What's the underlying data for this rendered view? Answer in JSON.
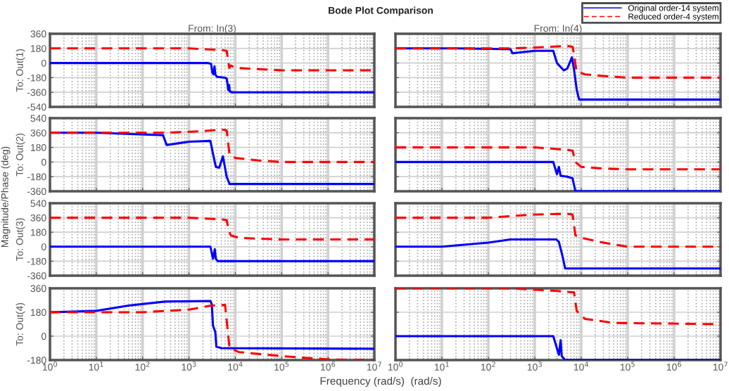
{
  "chart_data": [
    {
      "type": "line",
      "title": "From: In(3)",
      "ylabel": "To: Out(1)",
      "annotations": [
        "Bode Plot Comparison",
        "Magnitude/Phase (deg)",
        "Frequency (rad/s)  (rad/s)"
      ],
      "log": "x",
      "grid": true,
      "tick_labels": "y",
      "xlim": [
        1,
        10000000
      ],
      "xticks": [
        {
          "value": 1,
          "label": null
        },
        {
          "value": 10,
          "label": null
        },
        {
          "value": 100,
          "label": null
        },
        {
          "value": 1000,
          "label": null
        },
        {
          "value": 10000,
          "label": null
        },
        {
          "value": 100000,
          "label": null
        },
        {
          "value": 1000000,
          "label": null
        },
        {
          "value": 10000000,
          "label": null
        }
      ],
      "ylim": [
        -540,
        360
      ],
      "yticks": [
        -540,
        -360,
        -180,
        0,
        180,
        360
      ],
      "series": [
        {
          "color": "#0000ff",
          "line_style": "solid",
          "x": [
            1,
            2500,
            3000,
            3200,
            3400,
            3550,
            3700,
            4000,
            6000,
            6500,
            6800,
            7000,
            7300,
            7600,
            8500,
            10000000
          ],
          "values": [
            0,
            0,
            -10,
            -120,
            -140,
            -40,
            -140,
            -170,
            -180,
            -190,
            -260,
            -330,
            -270,
            -350,
            -360,
            -360
          ]
        },
        {
          "color": "#ff0000",
          "line_style": "dashed",
          "x": [
            1,
            1000,
            5000,
            6500,
            7400,
            8000,
            10000,
            100000,
            10000000
          ],
          "values": [
            180,
            180,
            160,
            150,
            -60,
            -30,
            -60,
            -90,
            -90
          ]
        }
      ]
    },
    {
      "type": "line",
      "title": "From: In(4)",
      "legend": "top right",
      "log": "x",
      "grid": true,
      "tick_labels": false,
      "xlim": [
        1,
        10000000
      ],
      "xticks": [
        {
          "value": 1,
          "label": null
        },
        {
          "value": 10,
          "label": null
        },
        {
          "value": 100,
          "label": null
        },
        {
          "value": 1000,
          "label": null
        },
        {
          "value": 10000,
          "label": null
        },
        {
          "value": 100000,
          "label": null
        },
        {
          "value": 1000000,
          "label": null
        },
        {
          "value": 10000000,
          "label": null
        }
      ],
      "ylim": [
        -540,
        360
      ],
      "yticks": [
        -540,
        -360,
        -180,
        0,
        180,
        360
      ],
      "series": [
        {
          "name": "Original order-14 system",
          "color": "#0000ff",
          "line_style": "solid",
          "x": [
            1,
            20,
            300,
            330,
            1000,
            2500,
            3000,
            4200,
            5000,
            6300,
            7000,
            8000,
            9000,
            10000000
          ],
          "values": [
            180,
            180,
            170,
            120,
            150,
            150,
            0,
            -90,
            -70,
            70,
            -80,
            -330,
            -450,
            -450
          ]
        },
        {
          "name": "Reduced order-4 system",
          "color": "#ff0000",
          "line_style": "dashed",
          "x": [
            1,
            300,
            1000,
            5000,
            6500,
            7000,
            7900,
            12000,
            30000,
            100000,
            10000000
          ],
          "values": [
            180,
            180,
            190,
            210,
            200,
            100,
            -100,
            -140,
            -160,
            -180,
            -180
          ]
        }
      ]
    },
    {
      "type": "line",
      "ylabel": "To: Out(2)",
      "log": "x",
      "grid": true,
      "tick_labels": "y",
      "xlim": [
        1,
        10000000
      ],
      "xticks": [
        {
          "value": 1,
          "label": null
        },
        {
          "value": 10,
          "label": null
        },
        {
          "value": 100,
          "label": null
        },
        {
          "value": 1000,
          "label": null
        },
        {
          "value": 10000,
          "label": null
        },
        {
          "value": 100000,
          "label": null
        },
        {
          "value": 1000000,
          "label": null
        },
        {
          "value": 10000000,
          "label": null
        }
      ],
      "ylim": [
        -360,
        540
      ],
      "yticks": [
        -360,
        -180,
        0,
        180,
        360,
        540
      ],
      "series": [
        {
          "color": "#0000ff",
          "line_style": "solid",
          "x": [
            1,
            10,
            275,
            330,
            1000,
            2900,
            3300,
            3800,
            4500,
            5400,
            6500,
            7500,
            10000000
          ],
          "values": [
            360,
            360,
            330,
            210,
            250,
            260,
            100,
            -60,
            -70,
            70,
            -180,
            -270,
            -270
          ]
        },
        {
          "color": "#ff0000",
          "line_style": "dashed",
          "x": [
            1,
            300,
            2000,
            5000,
            6500,
            7500,
            10000,
            30000,
            100000,
            10000000
          ],
          "values": [
            360,
            360,
            380,
            400,
            390,
            90,
            50,
            20,
            0,
            0
          ]
        }
      ]
    },
    {
      "type": "line",
      "log": "x",
      "grid": true,
      "tick_labels": false,
      "xlim": [
        1,
        10000000
      ],
      "xticks": [
        {
          "value": 1,
          "label": null
        },
        {
          "value": 10,
          "label": null
        },
        {
          "value": 100,
          "label": null
        },
        {
          "value": 1000,
          "label": null
        },
        {
          "value": 10000,
          "label": null
        },
        {
          "value": 100000,
          "label": null
        },
        {
          "value": 1000000,
          "label": null
        },
        {
          "value": 10000000,
          "label": null
        }
      ],
      "ylim": [
        -360,
        540
      ],
      "yticks": [
        -360,
        -180,
        0,
        180,
        360,
        540
      ],
      "series": [
        {
          "color": "#0000ff",
          "line_style": "solid",
          "x": [
            1,
            2500,
            3000,
            3300,
            3600,
            5000,
            6500,
            7500,
            10000000
          ],
          "values": [
            0,
            0,
            -150,
            -60,
            -170,
            -180,
            -200,
            -360,
            -360
          ]
        },
        {
          "color": "#ff0000",
          "line_style": "dashed",
          "x": [
            1,
            1000,
            3000,
            5000,
            6500,
            7500,
            10000,
            30000,
            100000,
            10000000
          ],
          "values": [
            180,
            180,
            160,
            150,
            140,
            0,
            -60,
            -80,
            -90,
            -90
          ]
        }
      ]
    },
    {
      "type": "line",
      "ylabel": "To: Out(3)",
      "log": "x",
      "grid": true,
      "tick_labels": "y",
      "xlim": [
        1,
        10000000
      ],
      "xticks": [
        {
          "value": 1,
          "label": null
        },
        {
          "value": 10,
          "label": null
        },
        {
          "value": 100,
          "label": null
        },
        {
          "value": 1000,
          "label": null
        },
        {
          "value": 10000,
          "label": null
        },
        {
          "value": 100000,
          "label": null
        },
        {
          "value": 1000000,
          "label": null
        },
        {
          "value": 10000000,
          "label": null
        }
      ],
      "ylim": [
        -360,
        540
      ],
      "yticks": [
        -360,
        -180,
        0,
        180,
        360,
        540
      ],
      "series": [
        {
          "color": "#0000ff",
          "line_style": "solid",
          "x": [
            1,
            2900,
            3300,
            3600,
            3800,
            4200,
            10000000
          ],
          "values": [
            0,
            0,
            -150,
            -30,
            -150,
            -180,
            -180
          ]
        },
        {
          "color": "#ff0000",
          "line_style": "dashed",
          "x": [
            1,
            1000,
            5000,
            6500,
            7000,
            7500,
            8000,
            12000,
            30000,
            100000,
            10000000
          ],
          "values": [
            360,
            360,
            340,
            330,
            240,
            180,
            140,
            110,
            100,
            90,
            90
          ]
        }
      ]
    },
    {
      "type": "line",
      "log": "x",
      "grid": true,
      "tick_labels": false,
      "xlim": [
        1,
        10000000
      ],
      "xticks": [
        {
          "value": 1,
          "label": null
        },
        {
          "value": 10,
          "label": null
        },
        {
          "value": 100,
          "label": null
        },
        {
          "value": 1000,
          "label": null
        },
        {
          "value": 10000,
          "label": null
        },
        {
          "value": 100000,
          "label": null
        },
        {
          "value": 1000000,
          "label": null
        },
        {
          "value": 10000000,
          "label": null
        }
      ],
      "ylim": [
        -360,
        540
      ],
      "yticks": [
        -360,
        -180,
        0,
        180,
        360,
        540
      ],
      "series": [
        {
          "color": "#0000ff",
          "line_style": "solid",
          "x": [
            1,
            10,
            100,
            300,
            2900,
            3300,
            4000,
            4500,
            10000000
          ],
          "values": [
            0,
            0,
            50,
            90,
            90,
            60,
            -130,
            -270,
            -270
          ]
        },
        {
          "color": "#ff0000",
          "line_style": "dashed",
          "x": [
            1,
            100,
            300,
            1000,
            5000,
            6500,
            7500,
            12000,
            30000,
            100000,
            10000000
          ],
          "values": [
            360,
            360,
            380,
            400,
            410,
            400,
            140,
            100,
            50,
            0,
            0
          ]
        }
      ]
    },
    {
      "type": "line",
      "ylabel": "To: Out(4)",
      "log": "x",
      "grid": true,
      "tick_labels": "xy",
      "xlim": [
        1,
        10000000
      ],
      "xticks": [
        {
          "value": 1,
          "label": "10$^{0}$"
        },
        {
          "value": 10,
          "label": "10$^{1}$"
        },
        {
          "value": 100,
          "label": "10$^{2}$"
        },
        {
          "value": 1000,
          "label": "10$^{3}$"
        },
        {
          "value": 10000,
          "label": "10$^{4}$"
        },
        {
          "value": 100000,
          "label": "10$^{5}$"
        },
        {
          "value": 1000000,
          "label": "10$^{6}$"
        },
        {
          "value": 10000000,
          "label": "10$^{7}$"
        }
      ],
      "ylim": [
        -180,
        360
      ],
      "yticks": [
        -180,
        0,
        180,
        360
      ],
      "series": [
        {
          "color": "#0000ff",
          "line_style": "solid",
          "x": [
            1,
            10,
            50,
            300,
            2900,
            3100,
            3300,
            3700,
            3900,
            5000,
            10000000
          ],
          "values": [
            180,
            190,
            230,
            260,
            265,
            240,
            80,
            30,
            -80,
            -90,
            -95
          ]
        },
        {
          "color": "#ff0000",
          "line_style": "dashed",
          "x": [
            1,
            100,
            1000,
            3000,
            6000,
            7500,
            12000,
            100000,
            1000000,
            10000000
          ],
          "values": [
            180,
            180,
            200,
            230,
            235,
            -90,
            -120,
            -150,
            -175,
            -180
          ]
        }
      ]
    },
    {
      "type": "line",
      "log": "x",
      "grid": true,
      "tick_labels": "x",
      "xlim": [
        1,
        10000000
      ],
      "xticks": [
        {
          "value": 1,
          "label": "10$^{0}$"
        },
        {
          "value": 10,
          "label": "10$^{1}$"
        },
        {
          "value": 100,
          "label": "10$^{2}$"
        },
        {
          "value": 1000,
          "label": "10$^{3}$"
        },
        {
          "value": 10000,
          "label": "10$^{4}$"
        },
        {
          "value": 100000,
          "label": "10$^{5}$"
        },
        {
          "value": 1000000,
          "label": "10$^{6}$"
        },
        {
          "value": 10000000,
          "label": "10$^{7}$"
        }
      ],
      "ylim": [
        -180,
        360
      ],
      "yticks": [
        -180,
        0,
        180,
        360
      ],
      "series": [
        {
          "color": "#0000ff",
          "line_style": "solid",
          "x": [
            1,
            2500,
            3300,
            3600,
            3800,
            4500,
            10000000
          ],
          "values": [
            0,
            0,
            -140,
            -30,
            -150,
            -180,
            -180
          ]
        },
        {
          "color": "#ff0000",
          "line_style": "dashed",
          "x": [
            1,
            300,
            1000,
            3000,
            7000,
            8000,
            12000,
            50000,
            10000000
          ],
          "values": [
            360,
            360,
            350,
            340,
            330,
            190,
            130,
            100,
            90
          ]
        }
      ]
    }
  ]
}
